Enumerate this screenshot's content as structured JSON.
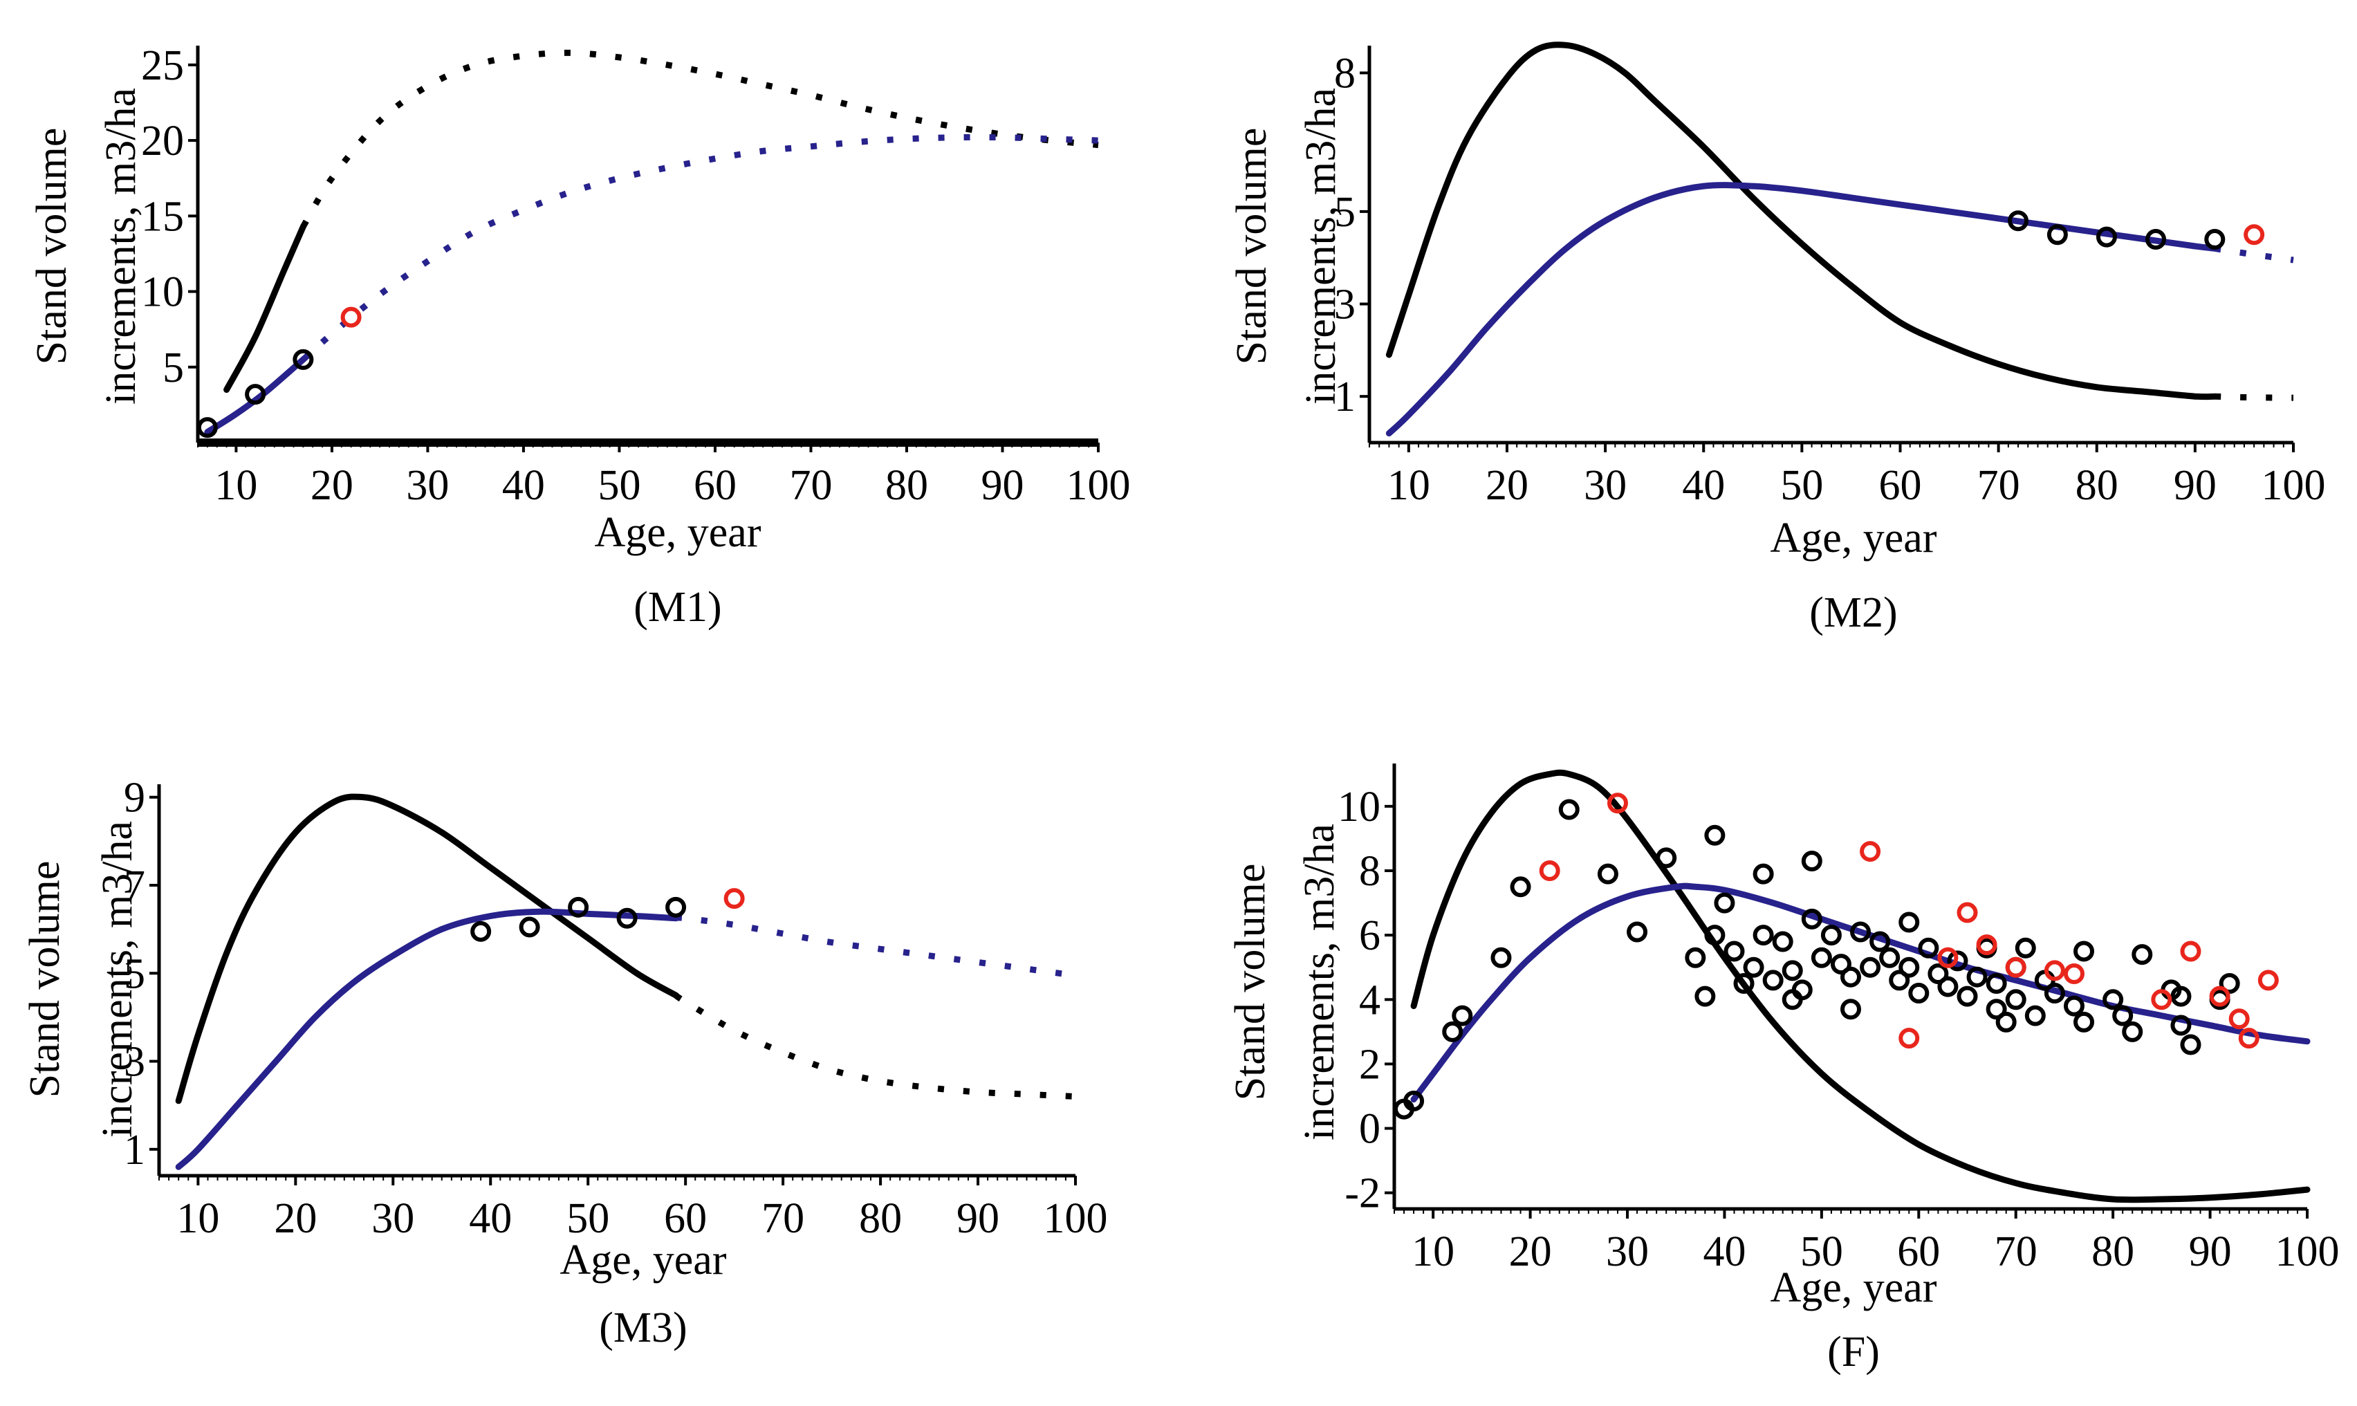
{
  "figure": {
    "colors": {
      "black_curve": "#000000",
      "blue_curve": "#27228c",
      "black_points": "#000000",
      "red_points": "#e8261c"
    }
  },
  "chart_data": [
    {
      "type": "line",
      "panel_label": "(M1)",
      "xlabel": "Age, year",
      "ylabel_line1": "Stand volume",
      "ylabel_line2": "increments, m3/ha",
      "xlim": [
        6,
        100
      ],
      "ylim": [
        0,
        26
      ],
      "xticks": [
        10,
        20,
        30,
        40,
        50,
        60,
        70,
        80,
        90,
        100
      ],
      "yticks": [
        5,
        10,
        15,
        20,
        25
      ],
      "x_fit_end": 17,
      "series": [
        {
          "name": "black curve",
          "color": "#000000",
          "x": [
            9,
            12,
            15,
            17,
            20,
            25,
            30,
            35,
            40,
            45,
            50,
            55,
            60,
            65,
            70,
            75,
            80,
            85,
            90,
            95,
            100
          ],
          "y": [
            3.5,
            7.0,
            11.4,
            14.3,
            17.5,
            21.3,
            23.6,
            25.0,
            25.6,
            25.8,
            25.5,
            25.0,
            24.4,
            23.7,
            23.0,
            22.2,
            21.5,
            20.9,
            20.4,
            20.0,
            19.7
          ]
        },
        {
          "name": "blue curve",
          "color": "#27228c",
          "x": [
            7,
            10,
            13,
            17,
            20,
            25,
            30,
            35,
            40,
            45,
            50,
            55,
            60,
            65,
            70,
            75,
            80,
            85,
            90,
            95,
            100
          ],
          "y": [
            0.7,
            1.9,
            3.3,
            5.5,
            7.2,
            9.8,
            12.0,
            14.0,
            15.4,
            16.6,
            17.5,
            18.2,
            18.8,
            19.3,
            19.6,
            19.9,
            20.1,
            20.2,
            20.2,
            20.1,
            20.0
          ]
        }
      ],
      "points_black": [
        {
          "x": 7,
          "y": 1.0
        },
        {
          "x": 12,
          "y": 3.2
        },
        {
          "x": 17,
          "y": 5.5
        }
      ],
      "points_red": [
        {
          "x": 22,
          "y": 8.3
        }
      ]
    },
    {
      "type": "line",
      "panel_label": "(M2)",
      "xlabel": "Age, year",
      "ylabel_line1": "Stand volume",
      "ylabel_line2": "increments, m3/ha",
      "xlim": [
        6,
        100
      ],
      "ylim": [
        0,
        8.5
      ],
      "xticks": [
        10,
        20,
        30,
        40,
        50,
        60,
        70,
        80,
        90,
        100
      ],
      "yticks": [
        1,
        3,
        5,
        8
      ],
      "x_fit_end": 92,
      "series": [
        {
          "name": "black curve",
          "color": "#000000",
          "x": [
            8,
            10,
            13,
            16,
            20,
            23,
            26,
            29,
            32,
            35,
            40,
            45,
            50,
            55,
            60,
            65,
            70,
            75,
            80,
            85,
            90,
            92,
            95,
            100
          ],
          "y": [
            1.9,
            3.2,
            5.1,
            6.6,
            7.9,
            8.5,
            8.6,
            8.4,
            8.0,
            7.4,
            6.4,
            5.3,
            4.3,
            3.4,
            2.6,
            2.1,
            1.7,
            1.4,
            1.2,
            1.1,
            1.0,
            1.0,
            0.98,
            0.97
          ]
        },
        {
          "name": "blue curve",
          "color": "#27228c",
          "x": [
            8,
            10,
            14,
            18,
            22,
            26,
            30,
            35,
            40,
            45,
            50,
            55,
            60,
            65,
            70,
            75,
            80,
            85,
            90,
            92,
            95,
            100
          ],
          "y": [
            0.2,
            0.6,
            1.5,
            2.5,
            3.4,
            4.2,
            4.8,
            5.3,
            5.55,
            5.55,
            5.45,
            5.3,
            5.15,
            5.0,
            4.85,
            4.7,
            4.55,
            4.4,
            4.25,
            4.2,
            4.1,
            3.95
          ]
        }
      ],
      "points_black": [
        {
          "x": 72,
          "y": 4.8
        },
        {
          "x": 76,
          "y": 4.5
        },
        {
          "x": 81,
          "y": 4.45
        },
        {
          "x": 86,
          "y": 4.4
        },
        {
          "x": 92,
          "y": 4.4
        }
      ],
      "points_red": [
        {
          "x": 96,
          "y": 4.5
        }
      ]
    },
    {
      "type": "line",
      "panel_label": "(M3)",
      "xlabel": "Age, year",
      "ylabel_line1": "Stand volume",
      "ylabel_line2": "increments, m3/ha",
      "xlim": [
        6,
        100
      ],
      "ylim": [
        0.4,
        9.2
      ],
      "xticks": [
        10,
        20,
        30,
        40,
        50,
        60,
        70,
        80,
        90,
        100
      ],
      "yticks": [
        1,
        3,
        5,
        7,
        9
      ],
      "x_fit_end": 59,
      "series": [
        {
          "name": "black curve",
          "color": "#000000",
          "x": [
            8,
            10,
            13,
            16,
            20,
            24,
            27,
            30,
            35,
            40,
            45,
            50,
            55,
            59,
            60,
            65,
            70,
            75,
            80,
            85,
            90,
            95,
            100
          ],
          "y": [
            2.1,
            3.6,
            5.5,
            6.9,
            8.2,
            8.9,
            9.0,
            8.8,
            8.2,
            7.4,
            6.6,
            5.8,
            5.0,
            4.5,
            4.35,
            3.7,
            3.2,
            2.8,
            2.55,
            2.4,
            2.3,
            2.25,
            2.2
          ]
        },
        {
          "name": "blue curve",
          "color": "#27228c",
          "x": [
            8,
            10,
            14,
            18,
            22,
            26,
            30,
            35,
            40,
            45,
            50,
            55,
            59,
            60,
            65,
            70,
            75,
            80,
            85,
            90,
            95,
            100
          ],
          "y": [
            0.6,
            1.0,
            2.0,
            3.0,
            4.0,
            4.8,
            5.4,
            6.0,
            6.3,
            6.4,
            6.35,
            6.3,
            6.25,
            6.25,
            6.1,
            5.9,
            5.7,
            5.55,
            5.4,
            5.25,
            5.1,
            4.95
          ]
        }
      ],
      "points_black": [
        {
          "x": 39,
          "y": 5.95
        },
        {
          "x": 44,
          "y": 6.05
        },
        {
          "x": 49,
          "y": 6.5
        },
        {
          "x": 54,
          "y": 6.25
        },
        {
          "x": 59,
          "y": 6.5
        }
      ],
      "points_red": [
        {
          "x": 65,
          "y": 6.7
        }
      ]
    },
    {
      "type": "scatter",
      "panel_label": "(F)",
      "xlabel": "Age, year",
      "ylabel_line1": "Stand volume",
      "ylabel_line2": "increments, m3/ha",
      "xlim": [
        6,
        100
      ],
      "ylim": [
        -2.5,
        11.2
      ],
      "xticks": [
        10,
        20,
        30,
        40,
        50,
        60,
        70,
        80,
        90,
        100
      ],
      "yticks": [
        -2,
        0,
        2,
        4,
        6,
        8,
        10
      ],
      "x_fit_end": 100,
      "series": [
        {
          "name": "black curve",
          "color": "#000000",
          "x": [
            8,
            10,
            13,
            16,
            19,
            22,
            24,
            27,
            30,
            35,
            40,
            45,
            50,
            55,
            60,
            65,
            70,
            75,
            80,
            85,
            90,
            95,
            100
          ],
          "y": [
            3.8,
            6.0,
            8.3,
            9.8,
            10.7,
            11.0,
            11.0,
            10.6,
            9.6,
            7.5,
            5.3,
            3.3,
            1.7,
            0.5,
            -0.5,
            -1.2,
            -1.7,
            -2.0,
            -2.2,
            -2.2,
            -2.15,
            -2.05,
            -1.9
          ]
        },
        {
          "name": "blue curve",
          "color": "#27228c",
          "x": [
            8,
            10,
            13,
            16,
            20,
            25,
            30,
            35,
            37,
            40,
            45,
            50,
            55,
            60,
            65,
            70,
            75,
            80,
            85,
            90,
            95,
            100
          ],
          "y": [
            0.9,
            1.7,
            2.9,
            4.0,
            5.3,
            6.5,
            7.2,
            7.5,
            7.5,
            7.4,
            7.0,
            6.5,
            6.0,
            5.5,
            5.0,
            4.6,
            4.2,
            3.8,
            3.5,
            3.2,
            2.9,
            2.7
          ]
        }
      ],
      "points_black": [
        {
          "x": 7,
          "y": 0.6
        },
        {
          "x": 8,
          "y": 0.85
        },
        {
          "x": 12,
          "y": 3.0
        },
        {
          "x": 13,
          "y": 3.5
        },
        {
          "x": 17,
          "y": 5.3
        },
        {
          "x": 19,
          "y": 7.5
        },
        {
          "x": 24,
          "y": 9.9
        },
        {
          "x": 28,
          "y": 7.9
        },
        {
          "x": 31,
          "y": 6.1
        },
        {
          "x": 34,
          "y": 8.4
        },
        {
          "x": 37,
          "y": 5.3
        },
        {
          "x": 38,
          "y": 4.1
        },
        {
          "x": 39,
          "y": 9.1
        },
        {
          "x": 39,
          "y": 6.0
        },
        {
          "x": 40,
          "y": 7.0
        },
        {
          "x": 41,
          "y": 5.5
        },
        {
          "x": 42,
          "y": 4.5
        },
        {
          "x": 43,
          "y": 5.0
        },
        {
          "x": 44,
          "y": 7.9
        },
        {
          "x": 44,
          "y": 6.0
        },
        {
          "x": 45,
          "y": 4.6
        },
        {
          "x": 46,
          "y": 5.8
        },
        {
          "x": 47,
          "y": 4.0
        },
        {
          "x": 47,
          "y": 4.9
        },
        {
          "x": 48,
          "y": 4.3
        },
        {
          "x": 49,
          "y": 8.3
        },
        {
          "x": 49,
          "y": 6.5
        },
        {
          "x": 50,
          "y": 5.3
        },
        {
          "x": 51,
          "y": 6.0
        },
        {
          "x": 52,
          "y": 5.1
        },
        {
          "x": 53,
          "y": 4.7
        },
        {
          "x": 53,
          "y": 3.7
        },
        {
          "x": 54,
          "y": 6.1
        },
        {
          "x": 55,
          "y": 5.0
        },
        {
          "x": 56,
          "y": 5.8
        },
        {
          "x": 57,
          "y": 5.3
        },
        {
          "x": 58,
          "y": 4.6
        },
        {
          "x": 59,
          "y": 6.4
        },
        {
          "x": 59,
          "y": 5.0
        },
        {
          "x": 60,
          "y": 4.2
        },
        {
          "x": 61,
          "y": 5.6
        },
        {
          "x": 62,
          "y": 4.8
        },
        {
          "x": 63,
          "y": 4.4
        },
        {
          "x": 64,
          "y": 5.2
        },
        {
          "x": 65,
          "y": 4.1
        },
        {
          "x": 66,
          "y": 4.7
        },
        {
          "x": 67,
          "y": 5.6
        },
        {
          "x": 68,
          "y": 3.7
        },
        {
          "x": 68,
          "y": 4.5
        },
        {
          "x": 69,
          "y": 3.3
        },
        {
          "x": 70,
          "y": 5.0
        },
        {
          "x": 70,
          "y": 4.0
        },
        {
          "x": 71,
          "y": 5.6
        },
        {
          "x": 72,
          "y": 3.5
        },
        {
          "x": 73,
          "y": 4.6
        },
        {
          "x": 74,
          "y": 4.2
        },
        {
          "x": 76,
          "y": 3.8
        },
        {
          "x": 77,
          "y": 5.5
        },
        {
          "x": 77,
          "y": 3.3
        },
        {
          "x": 80,
          "y": 4.0
        },
        {
          "x": 81,
          "y": 3.5
        },
        {
          "x": 82,
          "y": 3.0
        },
        {
          "x": 83,
          "y": 5.4
        },
        {
          "x": 86,
          "y": 4.3
        },
        {
          "x": 87,
          "y": 4.1
        },
        {
          "x": 87,
          "y": 3.2
        },
        {
          "x": 88,
          "y": 2.6
        },
        {
          "x": 91,
          "y": 4.0
        },
        {
          "x": 92,
          "y": 4.5
        }
      ],
      "points_red": [
        {
          "x": 22,
          "y": 8.0
        },
        {
          "x": 29,
          "y": 10.1
        },
        {
          "x": 55,
          "y": 8.6
        },
        {
          "x": 59,
          "y": 2.8
        },
        {
          "x": 63,
          "y": 5.3
        },
        {
          "x": 65,
          "y": 6.7
        },
        {
          "x": 67,
          "y": 5.7
        },
        {
          "x": 70,
          "y": 5.0
        },
        {
          "x": 74,
          "y": 4.9
        },
        {
          "x": 76,
          "y": 4.8
        },
        {
          "x": 85,
          "y": 4.0
        },
        {
          "x": 88,
          "y": 5.5
        },
        {
          "x": 91,
          "y": 4.1
        },
        {
          "x": 93,
          "y": 3.4
        },
        {
          "x": 94,
          "y": 2.8
        },
        {
          "x": 96,
          "y": 4.6
        }
      ]
    }
  ]
}
